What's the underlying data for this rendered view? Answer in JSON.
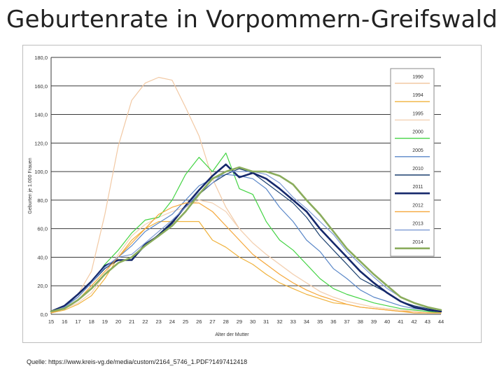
{
  "slide": {
    "title": "Geburtenrate in Vorpommern-Greifswald",
    "source": "Quelle: https://www.kreis-vg.de/media/custom/2164_5746_1.PDF?1497412418"
  },
  "chart_data": {
    "type": "line",
    "title": "",
    "xlabel": "Alter der Mutter",
    "ylabel": "Geburten je 1.000 Frauen",
    "x": [
      15,
      16,
      17,
      18,
      19,
      20,
      21,
      22,
      23,
      24,
      25,
      26,
      27,
      28,
      29,
      30,
      31,
      32,
      33,
      34,
      35,
      36,
      37,
      38,
      39,
      40,
      41,
      42,
      43,
      44
    ],
    "xlim": [
      15,
      44
    ],
    "ylim": [
      0,
      180
    ],
    "yticks": [
      "0,0",
      "20,0",
      "40,0",
      "60,0",
      "80,0",
      "100,0",
      "120,0",
      "140,0",
      "160,0",
      "180,0"
    ],
    "grid": true,
    "legend_position": "right",
    "series": [
      {
        "name": "1990",
        "color": "#f2c9a4",
        "width": 1.2,
        "values": [
          2,
          5,
          14,
          30,
          70,
          118,
          150,
          162,
          166,
          164,
          145,
          125,
          95,
          75,
          60,
          50,
          42,
          35,
          28,
          22,
          16,
          12,
          9,
          7,
          5,
          4,
          3,
          2,
          1,
          1
        ]
      },
      {
        "name": "1994",
        "color": "#f0b23c",
        "width": 1.2,
        "values": [
          1,
          3,
          7,
          13,
          25,
          40,
          52,
          60,
          65,
          65,
          65,
          65,
          52,
          47,
          40,
          35,
          28,
          22,
          18,
          14,
          11,
          8,
          7,
          5,
          4,
          3,
          2,
          2,
          1,
          1
        ]
      },
      {
        "name": "1995",
        "color": "#f3d2b5",
        "width": 1.2,
        "values": [
          1,
          4,
          8,
          15,
          28,
          42,
          55,
          63,
          68,
          72,
          75,
          80,
          78,
          72,
          60,
          50,
          42,
          35,
          28,
          22,
          16,
          12,
          9,
          7,
          5,
          4,
          3,
          2,
          1,
          1
        ]
      },
      {
        "name": "2000",
        "color": "#44d444",
        "width": 1.2,
        "values": [
          2,
          5,
          12,
          22,
          35,
          45,
          57,
          66,
          68,
          80,
          98,
          110,
          100,
          113,
          88,
          84,
          65,
          52,
          45,
          35,
          25,
          18,
          14,
          11,
          8,
          6,
          4,
          3,
          2,
          1
        ]
      },
      {
        "name": "2005",
        "color": "#5a87c8",
        "width": 1.2,
        "values": [
          2,
          6,
          12,
          22,
          33,
          40,
          48,
          58,
          64,
          70,
          80,
          90,
          95,
          98,
          97,
          95,
          88,
          75,
          65,
          52,
          44,
          32,
          25,
          17,
          12,
          9,
          6,
          4,
          3,
          2
        ]
      },
      {
        "name": "2010",
        "color": "#1a3f6e",
        "width": 1.2,
        "values": [
          2,
          5,
          12,
          22,
          32,
          38,
          38,
          48,
          56,
          65,
          75,
          84,
          92,
          98,
          102,
          99,
          92,
          85,
          78,
          68,
          55,
          45,
          35,
          25,
          20,
          15,
          9,
          6,
          4,
          2
        ]
      },
      {
        "name": "2011",
        "color": "#15286b",
        "width": 2.6,
        "values": [
          2,
          6,
          14,
          23,
          34,
          38,
          38,
          49,
          55,
          64,
          76,
          87,
          97,
          105,
          96,
          99,
          95,
          88,
          80,
          72,
          60,
          50,
          40,
          30,
          22,
          15,
          9,
          5,
          3,
          2
        ]
      },
      {
        "name": "2012",
        "color": "#f5a73a",
        "width": 1.2,
        "values": [
          1,
          4,
          10,
          20,
          30,
          40,
          50,
          60,
          70,
          75,
          78,
          78,
          72,
          62,
          52,
          42,
          35,
          28,
          22,
          17,
          13,
          10,
          7,
          5,
          4,
          3,
          2,
          1,
          1,
          1
        ]
      },
      {
        "name": "2013",
        "color": "#7d9ad4",
        "width": 1.2,
        "values": [
          2,
          5,
          12,
          22,
          33,
          40,
          42,
          50,
          58,
          66,
          75,
          85,
          92,
          100,
          100,
          100,
          98,
          92,
          82,
          74,
          65,
          56,
          44,
          35,
          26,
          18,
          12,
          8,
          5,
          3
        ]
      },
      {
        "name": "2014",
        "color": "#8aac5c",
        "width": 2.6,
        "values": [
          2,
          4,
          10,
          18,
          28,
          36,
          40,
          48,
          55,
          62,
          72,
          84,
          95,
          100,
          103,
          100,
          100,
          97,
          91,
          80,
          70,
          58,
          46,
          37,
          28,
          20,
          12,
          8,
          5,
          3
        ]
      }
    ]
  }
}
